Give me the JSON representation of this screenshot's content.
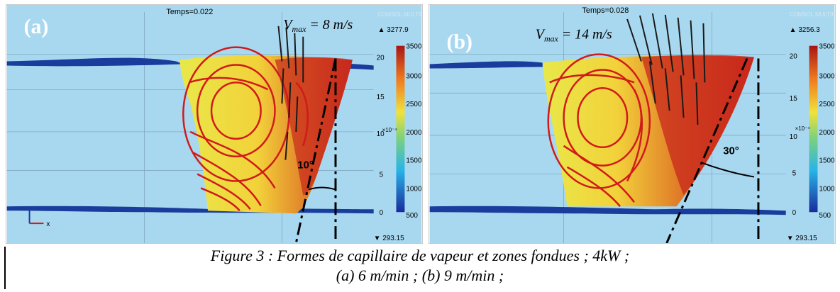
{
  "panels": [
    {
      "label": "(a)",
      "time": "Temps=0.022",
      "vmax_prefix": "V",
      "vmax_sub": "max",
      "vmax_value": " = 8 m/s",
      "angle": "10°",
      "max_value": "▲ 3277.9",
      "min_value": "▼ 293.15",
      "scale_ticks": [
        "3500",
        "3000",
        "2500",
        "2000",
        "1500",
        "1000",
        "500"
      ],
      "y_ticks": [
        "20",
        "15",
        "10",
        "5",
        "0"
      ],
      "y_exponent": "×10⁻⁴",
      "axis_x": "x",
      "watermark": "COMSOL MULTIPHYSICS"
    },
    {
      "label": "(b)",
      "time": "Temps=0.028",
      "vmax_prefix": "V",
      "vmax_sub": "max",
      "vmax_value": " = 14 m/s",
      "angle": "30°",
      "max_value": "▲ 3256.3",
      "min_value": "▼ 293.15",
      "scale_ticks": [
        "3500",
        "3000",
        "2500",
        "2000",
        "1500",
        "1000",
        "500"
      ],
      "y_ticks": [
        "20",
        "15",
        "10",
        "5",
        "0"
      ],
      "y_exponent": "×10⁻⁴",
      "axis_x": "x",
      "watermark": "COMSOL MULTIPHYSICS"
    }
  ],
  "colors": {
    "background": "#a8d8f0",
    "streamline": "#d11a1a",
    "arrow": "#1a1a1a",
    "band": "#1a3c9c"
  },
  "caption": {
    "line1": "Figure 3 : Formes de capillaire de vapeur et zones fondues ; 4kW ;",
    "line2": "(a) 6 m/min ; (b) 9 m/min ;"
  }
}
